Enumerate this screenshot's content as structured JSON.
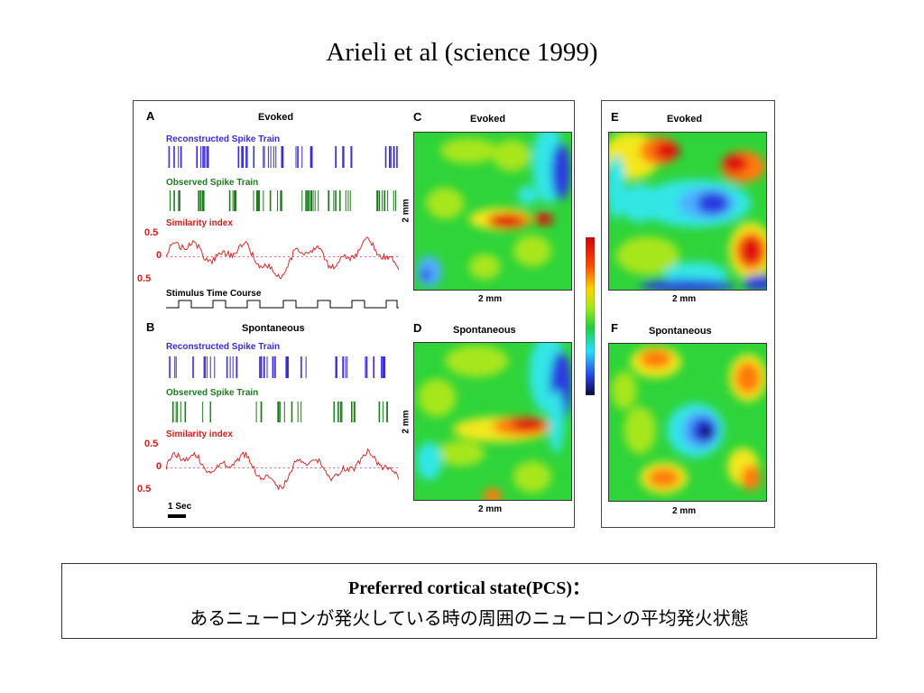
{
  "slide": {
    "title": "Arieli et al (science 1999)"
  },
  "figure": {
    "panel_a": {
      "letter": "A",
      "title": "Evoked"
    },
    "panel_b": {
      "letter": "B",
      "title": "Spontaneous"
    },
    "panel_c": {
      "letter": "C",
      "title": "Evoked",
      "x_label": "2 mm",
      "y_label": "2 mm"
    },
    "panel_d": {
      "letter": "D",
      "title": "Spontaneous",
      "x_label": "2 mm",
      "y_label": "2 mm"
    },
    "panel_e": {
      "letter": "E",
      "title": "Evoked",
      "x_label": "2 mm"
    },
    "panel_f": {
      "letter": "F",
      "title": "Spontaneous",
      "x_label": "2 mm"
    },
    "trace_labels": {
      "reconstructed": "Reconstructed Spike Train",
      "observed": "Observed Spike Train",
      "similarity": "Similarity index",
      "stimulus": "Stimulus Time Course"
    },
    "similarity_ticks": [
      "0.5",
      "0",
      "0.5"
    ],
    "scale_bar": "1 Sec",
    "colors": {
      "reconstructed": "#3a2bd8",
      "observed": "#1d7a1d",
      "similarity": "#d8191a"
    }
  },
  "caption": {
    "line1": "Preferred cortical state(PCS)：",
    "line2": "あるニューロンが発火している時の周囲のニューロンの平均発火状態"
  }
}
